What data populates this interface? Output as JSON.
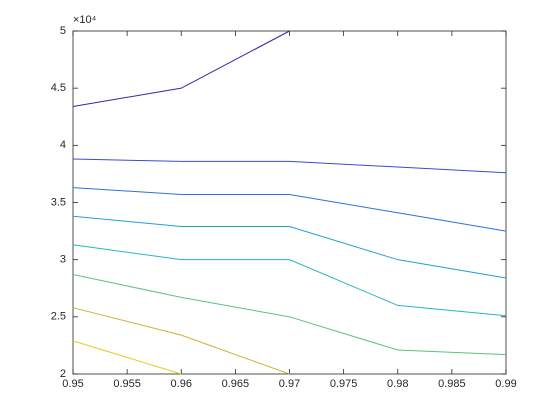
{
  "chart_data": {
    "type": "line",
    "y_exponent": "×10⁴",
    "x": [
      0.95,
      0.96,
      0.97,
      0.98,
      0.99
    ],
    "series": [
      {
        "color": "#2a2aa8",
        "values": [
          4.34,
          4.5,
          5.0,
          null,
          null
        ]
      },
      {
        "color": "#3a4cd4",
        "values": [
          3.88,
          3.86,
          3.86,
          3.81,
          3.76
        ]
      },
      {
        "color": "#2f6fdf",
        "values": [
          3.63,
          3.57,
          3.57,
          3.41,
          3.25
        ]
      },
      {
        "color": "#1f9fd8",
        "values": [
          3.38,
          3.29,
          3.29,
          3.0,
          2.84
        ]
      },
      {
        "color": "#22b8c4",
        "values": [
          3.13,
          3.0,
          3.0,
          2.6,
          2.51
        ]
      },
      {
        "color": "#5cc080",
        "values": [
          2.87,
          2.67,
          2.5,
          2.21,
          2.17
        ]
      },
      {
        "color": "#d0b030",
        "values": [
          2.58,
          2.34,
          2.0,
          null,
          null
        ]
      },
      {
        "color": "#ecc820",
        "values": [
          2.29,
          2.0,
          null,
          null,
          null
        ]
      }
    ],
    "xlim": [
      0.95,
      0.99
    ],
    "xticks": [
      0.95,
      0.955,
      0.96,
      0.965,
      0.97,
      0.975,
      0.98,
      0.985,
      0.99
    ],
    "ylim": [
      2,
      5
    ],
    "yticks": [
      2,
      2.5,
      3,
      3.5,
      4,
      4.5,
      5
    ]
  }
}
